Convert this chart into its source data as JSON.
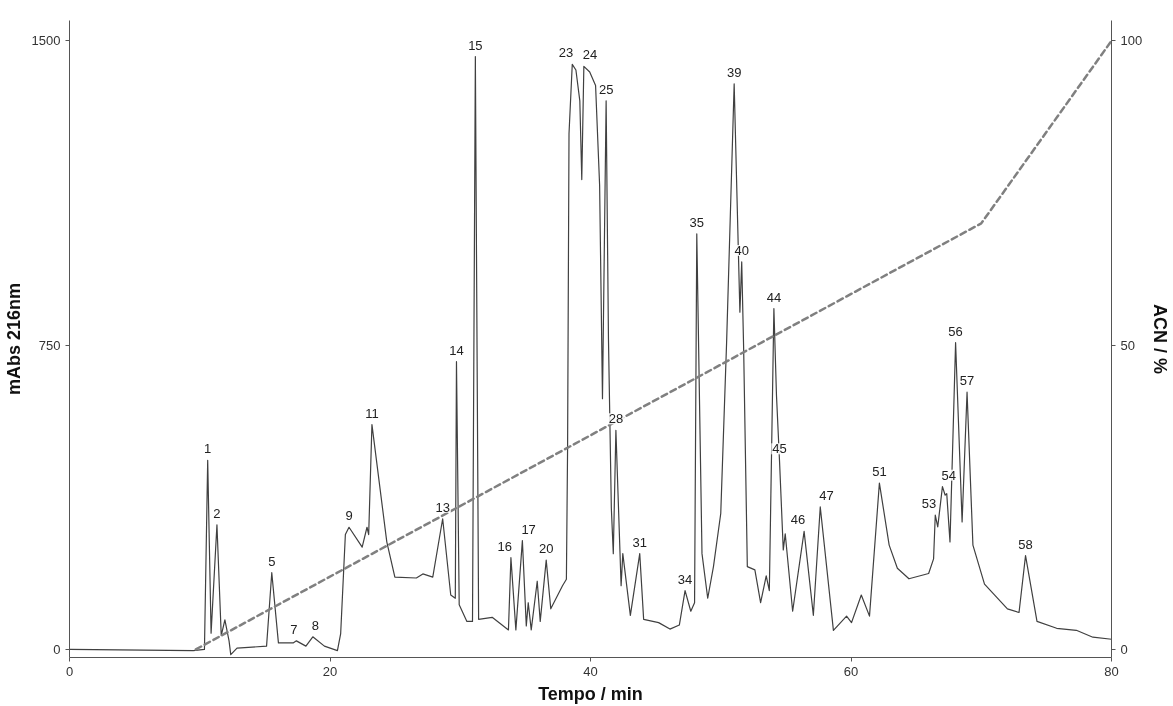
{
  "chart_data": {
    "type": "line",
    "xlabel": "Tempo / min",
    "ylabel": "mAbs 216nm",
    "y2label": "ACN / %",
    "xlim": [
      0,
      80
    ],
    "xticks": [
      0,
      20,
      40,
      60,
      80
    ],
    "ylim": [
      -20,
      1550
    ],
    "yticks": [
      0,
      750,
      1500
    ],
    "y2lim": [
      -1.3333,
      103.3333
    ],
    "y2ticks": [
      0,
      50,
      100
    ],
    "grid": false,
    "series": [
      {
        "color": "#404040",
        "line_style": "solid",
        "axis": "y",
        "x": [
          0,
          9.5,
          10.36,
          10.61,
          10.87,
          11.32,
          11.65,
          11.93,
          12.25,
          12.38,
          12.86,
          15.13,
          15.53,
          16.04,
          17.17,
          17.42,
          18.15,
          18.68,
          19.57,
          20.57,
          20.82,
          21.18,
          21.46,
          22.47,
          22.84,
          22.97,
          23.22,
          24.36,
          24.98,
          26.63,
          27.13,
          27.89,
          28.65,
          29.27,
          29.62,
          29.71,
          29.92,
          30.51,
          30.94,
          31.16,
          31.41,
          32.45,
          33.7,
          33.89,
          34.27,
          34.77,
          35.07,
          35.22,
          35.45,
          35.91,
          36.14,
          36.6,
          36.95,
          37.85,
          38.15,
          38.24,
          38.35,
          38.6,
          38.88,
          39.18,
          39.33,
          39.49,
          39.94,
          40.39,
          40.7,
          40.92,
          41.2,
          41.38,
          41.6,
          41.75,
          41.95,
          42.35,
          42.48,
          43.06,
          43.78,
          44.08,
          45.23,
          46.1,
          46.82,
          47.26,
          47.7,
          47.99,
          48.16,
          48.56,
          49.0,
          49.44,
          50.0,
          50.45,
          51.03,
          51.47,
          51.61,
          51.76,
          52.04,
          52.62,
          53.06,
          53.49,
          53.73,
          54.08,
          54.28,
          54.51,
          54.8,
          54.95,
          55.52,
          56.4,
          57.11,
          57.64,
          58.65,
          59.66,
          60.04,
          60.79,
          61.42,
          62.18,
          62.93,
          63.56,
          64.45,
          65.96,
          66.34,
          66.47,
          66.66,
          67.02,
          67.23,
          67.35,
          67.6,
          68.03,
          68.53,
          68.91,
          69.36,
          70.25,
          72.01,
          72.9,
          73.4,
          74.28,
          75.79,
          77.3,
          78.57,
          80
        ],
        "values": [
          0,
          -3,
          0,
          466,
          40,
          307,
          34,
          73,
          21,
          -13,
          3,
          8,
          189,
          16,
          16,
          21,
          8,
          31,
          8,
          -3,
          39,
          283,
          301,
          252,
          301,
          283,
          554,
          265,
          178,
          176,
          186,
          178,
          322,
          134,
          126,
          709,
          110,
          69,
          69,
          1461,
          74,
          79,
          48,
          226,
          48,
          268,
          58,
          115,
          48,
          168,
          69,
          220,
          100,
          157,
          173,
          493,
          1271,
          1442,
          1428,
          1352,
          1158,
          1437,
          1423,
          1390,
          1144,
          618,
          1352,
          764,
          348,
          236,
          540,
          157,
          236,
          84,
          236,
          74,
          66,
          50,
          60,
          145,
          94,
          115,
          1024,
          236,
          126,
          204,
          335,
          757,
          1394,
          831,
          955,
          738,
          204,
          196,
          115,
          181,
          145,
          840,
          625,
          466,
          245,
          285,
          94,
          291,
          84,
          351,
          47,
          82,
          66,
          134,
          82,
          410,
          257,
          200,
          174,
          187,
          223,
          331,
          302,
          401,
          380,
          384,
          265,
          756,
          314,
          634,
          257,
          161,
          100,
          91,
          231,
          69,
          52,
          47,
          30,
          25
        ]
      },
      {
        "color": "#808080",
        "line_style": "dashed",
        "axis": "y2",
        "x": [
          9.7,
          70,
          80
        ],
        "values": [
          0,
          70,
          100
        ]
      }
    ],
    "annotations": [
      {
        "text": "1",
        "x": 10.61,
        "y": 466
      },
      {
        "text": "2",
        "x": 11.32,
        "y": 307
      },
      {
        "text": "5",
        "x": 15.53,
        "y": 189
      },
      {
        "text": "7",
        "x": 17.42,
        "y": 21
      },
      {
        "text": "8",
        "x": 18.68,
        "y": 31
      },
      {
        "text": "9",
        "x": 21.46,
        "y": 301
      },
      {
        "text": "11",
        "x": 23.22,
        "y": 554
      },
      {
        "text": "13",
        "x": 28.65,
        "y": 322
      },
      {
        "text": "14",
        "x": 29.71,
        "y": 709
      },
      {
        "text": "15",
        "x": 31.16,
        "y": 1461
      },
      {
        "text": "16",
        "x": 33.89,
        "y": 226
      },
      {
        "text": "17",
        "x": 34.77,
        "y": 268
      },
      {
        "text": "20",
        "x": 36.6,
        "y": 220
      },
      {
        "text": "23",
        "x": 38.6,
        "y": 1442
      },
      {
        "text": "24",
        "x": 39.49,
        "y": 1437
      },
      {
        "text": "25",
        "x": 41.2,
        "y": 1352
      },
      {
        "text": "28",
        "x": 41.95,
        "y": 540
      },
      {
        "text": "31",
        "x": 43.78,
        "y": 236
      },
      {
        "text": "34",
        "x": 47.26,
        "y": 145
      },
      {
        "text": "35",
        "x": 48.16,
        "y": 1024
      },
      {
        "text": "39",
        "x": 51.03,
        "y": 1394
      },
      {
        "text": "40",
        "x": 51.61,
        "y": 955
      },
      {
        "text": "44",
        "x": 54.08,
        "y": 840
      },
      {
        "text": "45",
        "x": 54.51,
        "y": 466
      },
      {
        "text": "46",
        "x": 56.4,
        "y": 291
      },
      {
        "text": "47",
        "x": 57.64,
        "y": 351
      },
      {
        "text": "51",
        "x": 62.18,
        "y": 410
      },
      {
        "text": "53",
        "x": 66.47,
        "y": 331
      },
      {
        "text": "54",
        "x": 67.02,
        "y": 401
      },
      {
        "text": "56",
        "x": 68.03,
        "y": 756
      },
      {
        "text": "57",
        "x": 68.91,
        "y": 634
      },
      {
        "text": "58",
        "x": 73.4,
        "y": 231
      }
    ]
  }
}
